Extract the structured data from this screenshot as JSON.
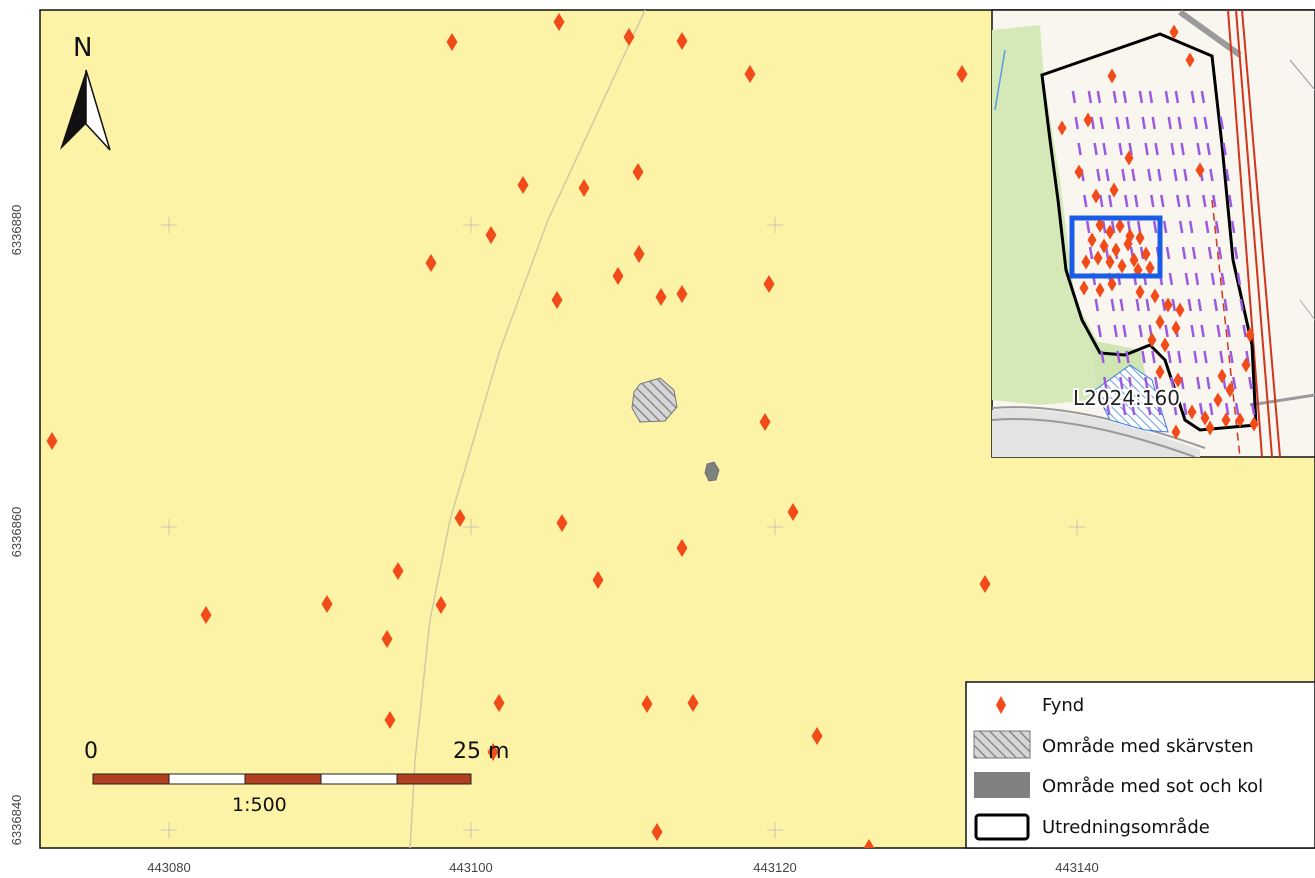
{
  "map": {
    "north_label": "N",
    "scale": {
      "start_label": "0",
      "end_label": "25 m",
      "ratio_label": "1:500"
    },
    "y_ticks": [
      "6336880",
      "6336860",
      "6336840"
    ],
    "x_ticks": [
      "443080",
      "443100",
      "443120",
      "443140"
    ],
    "colors": {
      "background": "#fdf3a6",
      "find_marker": "#f24b1a",
      "sot_kol": "#808080",
      "boundary": "#000000",
      "inset_frame": "#1a5ce6",
      "rail": "#d0361f"
    },
    "findings_symbol": "diamond-red"
  },
  "inset": {
    "label": "L2024:160"
  },
  "legend": {
    "items": [
      {
        "label": "Fynd",
        "symbol": "diamond-red"
      },
      {
        "label": "Område med skärvsten",
        "symbol": "hatched-gray"
      },
      {
        "label": "Område med sot och kol",
        "symbol": "solid-gray"
      },
      {
        "label": "Utredningsområde",
        "symbol": "black-outline"
      }
    ]
  }
}
